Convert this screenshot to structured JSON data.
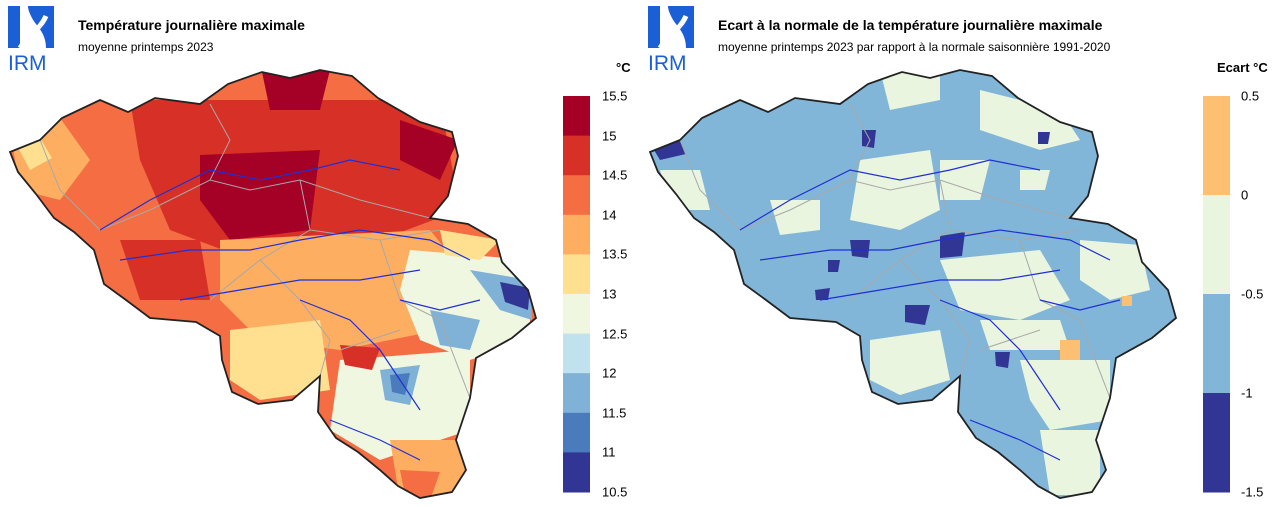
{
  "logo_text": "IRM",
  "left_panel": {
    "title": "Température journalière maximale",
    "subtitle": "moyenne printemps 2023",
    "legend": {
      "unit": "°C",
      "ticks": [
        "15.5",
        "15",
        "14.5",
        "14",
        "13.5",
        "13",
        "12.5",
        "12",
        "11.5",
        "11",
        "10.5"
      ],
      "colors": [
        "#a50026",
        "#d73027",
        "#f46d43",
        "#fdae61",
        "#fee090",
        "#f0f7e0",
        "#bfe2ee",
        "#7fb2d6",
        "#4a7cbd",
        "#313695"
      ]
    }
  },
  "right_panel": {
    "title": "Ecart à la normale de la température journalière maximale",
    "subtitle": "moyenne printemps 2023 par rapport à la normale saisonnière 1991-2020",
    "legend": {
      "unit": "Ecart °C",
      "ticks": [
        "0.5",
        "0",
        "-0.5",
        "-1",
        "-1.5"
      ],
      "colors": [
        "#fdbf72",
        "#eaf5df",
        "#81b6d8",
        "#313695"
      ]
    }
  },
  "colors": {
    "logo_blue": "#1a5fd6",
    "border": "#222222",
    "rivers": "#1f2fd8",
    "provinces": "#a8a8a8"
  }
}
